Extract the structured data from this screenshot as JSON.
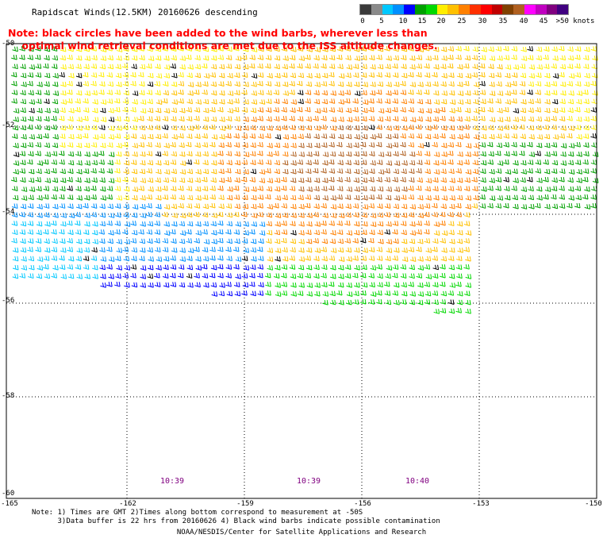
{
  "title": "Rapidscat Winds(12.5KM) 20160626 descending",
  "note_lines": [
    "Note: black circles have been added to the wind barbs, wherever less than",
    "    optimal wind retrieval conditions are met due to the ISS altitude changes."
  ],
  "legend": {
    "labels": [
      "0",
      "5",
      "10",
      "15",
      "20",
      "25",
      "30",
      "35",
      "40",
      "45",
      ">50 knots"
    ],
    "colors": [
      "#3a3a3a",
      "#8a8a8a",
      "#00c8ff",
      "#0090ff",
      "#0000ff",
      "#00a000",
      "#00d800",
      "#ffee00",
      "#ffc000",
      "#ff8000",
      "#ff3000",
      "#ff0000",
      "#c00000",
      "#804000",
      "#b06020",
      "#ff00ff",
      "#c000c0",
      "#800080",
      "#400080"
    ]
  },
  "lat_labels": [
    "-50",
    "-52",
    "-54",
    "-56",
    "-58",
    "-60"
  ],
  "lon_labels": [
    "-165",
    "-162",
    "-159",
    "-156",
    "-153",
    "-150"
  ],
  "times": [
    {
      "text": "10:39"
    },
    {
      "text": "10:39"
    },
    {
      "text": "10:40"
    }
  ],
  "footnote_lines": [
    "Note: 1) Times are GMT 2)Times along bottom correspond to measurement at -50S",
    "      3)Data buffer is 22 hrs from 20160626 4) Black wind barbs indicate possible contamination"
  ],
  "credit": "NOAA/NESDIS/Center for Satellite Applications and Research"
}
